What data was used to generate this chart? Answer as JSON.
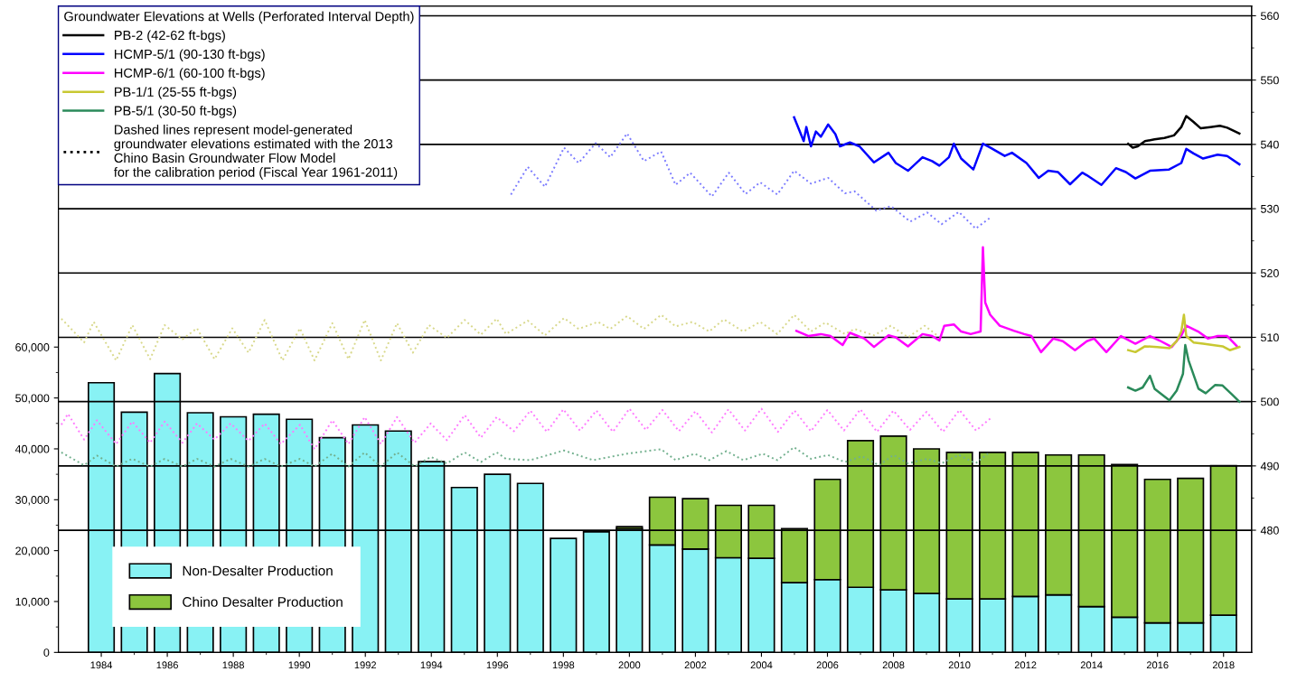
{
  "chart_data": {
    "type": "bar",
    "stacked": true,
    "legend": "top left",
    "grid": "y",
    "legend_title": "Groundwater Elevations at Wells (Perforated Interval Depth)",
    "annotations": [
      "Dashed lines represent model-generated\ngroundwater elevations estimated with the 2013\nChino Basin Groundwater Flow Model\nfor the calibration period (Fiscal Year 1961-2011)"
    ],
    "x": [
      1984,
      1985,
      1986,
      1987,
      1988,
      1989,
      1990,
      1991,
      1992,
      1993,
      1994,
      1995,
      1996,
      1997,
      1998,
      1999,
      2000,
      2001,
      2002,
      2003,
      2004,
      2005,
      2006,
      2007,
      2008,
      2009,
      2010,
      2011,
      2012,
      2013,
      2014,
      2015,
      2016,
      2017,
      2018
    ],
    "xlim": [
      1982.7,
      2018.85
    ],
    "xticks": [
      1984,
      {
        "value": 1985,
        "label": null
      },
      1986,
      {
        "value": 1987,
        "label": null
      },
      1988,
      {
        "value": 1989,
        "label": null
      },
      1990,
      {
        "value": 1991,
        "label": null
      },
      1992,
      {
        "value": 1993,
        "label": null
      },
      1994,
      {
        "value": 1995,
        "label": null
      },
      1996,
      {
        "value": 1997,
        "label": null
      },
      1998,
      {
        "value": 1999,
        "label": null
      },
      2000,
      {
        "value": 2001,
        "label": null
      },
      2002,
      {
        "value": 2003,
        "label": null
      },
      2004,
      {
        "value": 2005,
        "label": null
      },
      2006,
      {
        "value": 2007,
        "label": null
      },
      2008,
      {
        "value": 2009,
        "label": null
      },
      2010,
      {
        "value": 2011,
        "label": null
      },
      2012,
      {
        "value": 2013,
        "label": null
      },
      2014,
      {
        "value": 2015,
        "label": null
      },
      2016,
      {
        "value": 2017,
        "label": null
      },
      2018
    ],
    "ylim": [
      0,
      127000
    ],
    "yticks": [
      0,
      {
        "value": 5000,
        "label": null
      },
      {
        "value": 10000,
        "label": "10,000"
      },
      {
        "value": 15000,
        "label": null
      },
      {
        "value": 20000,
        "label": "20,000"
      },
      {
        "value": 25000,
        "label": null
      },
      {
        "value": 30000,
        "label": "30,000"
      },
      {
        "value": 35000,
        "label": null
      },
      {
        "value": 40000,
        "label": "40,000"
      },
      {
        "value": 45000,
        "label": null
      },
      {
        "value": 50000,
        "label": "50,000"
      },
      {
        "value": 55000,
        "label": null
      },
      {
        "value": 60000,
        "label": "60,000"
      }
    ],
    "y2lim": [
      461,
      561.5
    ],
    "y2ticks": [
      {
        "value": 485,
        "label": null
      },
      480,
      490,
      500,
      510,
      520,
      530,
      540,
      550,
      560,
      {
        "value": 495,
        "label": null
      },
      {
        "value": 505,
        "label": null
      },
      {
        "value": 515,
        "label": null
      },
      {
        "value": 525,
        "label": null
      },
      {
        "value": 535,
        "label": null
      },
      {
        "value": 545,
        "label": null
      },
      {
        "value": 555,
        "label": null
      }
    ],
    "series": [
      {
        "name": "Non-Desalter Production",
        "color": "#88f2f4",
        "values": [
          53000,
          47200,
          54800,
          47100,
          46300,
          46800,
          45800,
          42200,
          44700,
          43500,
          37500,
          32400,
          35000,
          33200,
          22400,
          23700,
          24300,
          21100,
          20300,
          18600,
          18500,
          13700,
          14300,
          12800,
          12300,
          11600,
          10500,
          10500,
          11000,
          11300,
          9000,
          6900,
          5800,
          5800,
          7300
        ]
      },
      {
        "name": "Chino Desalter Production",
        "color": "#8cc63e",
        "values": [
          null,
          null,
          null,
          null,
          null,
          null,
          null,
          null,
          null,
          null,
          null,
          null,
          null,
          null,
          null,
          null,
          400,
          9400,
          9900,
          10300,
          10400,
          10600,
          19700,
          28800,
          30200,
          28400,
          28800,
          28800,
          28300,
          27500,
          29800,
          30000,
          28200,
          28400,
          29400
        ]
      },
      {
        "name": "PB-2 (42-62 ft-bgs)",
        "type": "line",
        "axis": "y2",
        "color": "#000000",
        "line_style": "solid",
        "x": [
          2015.11,
          2015.25,
          2015.4,
          2015.62,
          2015.91,
          2016.21,
          2016.5,
          2016.72,
          2016.87,
          2017.09,
          2017.31,
          2017.6,
          2017.89,
          2018.11,
          2018.48
        ],
        "values": [
          540.1,
          539.5,
          539.7,
          540.5,
          540.8,
          541.0,
          541.4,
          542.7,
          544.4,
          543.5,
          542.5,
          542.7,
          542.9,
          542.6,
          541.7
        ]
      },
      {
        "name": "HCMP-5/1 (90-130 ft-bgs)",
        "type": "line",
        "axis": "y2",
        "color": "#0000ff",
        "line_style": "solid",
        "x": [
          2004.99,
          2005.14,
          2005.28,
          2005.36,
          2005.5,
          2005.65,
          2005.8,
          2006.02,
          2006.24,
          2006.38,
          2006.68,
          2006.97,
          2007.41,
          2007.85,
          2008.07,
          2008.44,
          2008.88,
          2009.17,
          2009.39,
          2009.68,
          2009.83,
          2010.05,
          2010.42,
          2010.71,
          2010.93,
          2011.37,
          2011.59,
          2012.03,
          2012.4,
          2012.69,
          2012.98,
          2013.35,
          2013.72,
          2013.86,
          2014.3,
          2014.74,
          2015.04,
          2015.33,
          2015.77,
          2016.35,
          2016.72,
          2016.87,
          2017.09,
          2017.38,
          2017.82,
          2018.11,
          2018.48
        ],
        "values": [
          544.2,
          542.3,
          540.5,
          542.7,
          539.7,
          542.0,
          541.2,
          543.1,
          541.6,
          539.7,
          540.3,
          539.7,
          537.2,
          538.7,
          537.1,
          535.9,
          538.0,
          537.4,
          536.7,
          538.0,
          540.1,
          537.8,
          536.1,
          540.1,
          539.5,
          538.2,
          538.7,
          537.1,
          534.8,
          535.9,
          535.7,
          533.8,
          535.6,
          535.2,
          533.7,
          536.3,
          535.7,
          534.7,
          535.9,
          536.1,
          537.1,
          539.3,
          538.6,
          537.8,
          538.4,
          538.2,
          536.9
        ]
      },
      {
        "name": "HCMP-6/1 (60-100 ft-bgs)",
        "type": "line",
        "axis": "y2",
        "color": "#ff00ff",
        "line_style": "solid",
        "x": [
          2005.06,
          2005.43,
          2005.8,
          2006.09,
          2006.46,
          2006.68,
          2007.12,
          2007.41,
          2007.85,
          2008.07,
          2008.44,
          2008.88,
          2009.17,
          2009.39,
          2009.54,
          2009.83,
          2010.05,
          2010.34,
          2010.64,
          2010.71,
          2010.78,
          2010.93,
          2011.22,
          2011.66,
          2011.96,
          2012.18,
          2012.47,
          2012.84,
          2013.13,
          2013.5,
          2013.86,
          2014.08,
          2014.45,
          2014.89,
          2015.33,
          2015.77,
          2016.06,
          2016.43,
          2016.72,
          2016.87,
          2017.23,
          2017.53,
          2017.82,
          2018.11,
          2018.41
        ],
        "values": [
          511.0,
          510.2,
          510.5,
          510.2,
          508.8,
          510.7,
          509.8,
          508.5,
          510.3,
          510.0,
          508.6,
          510.5,
          510.2,
          509.5,
          511.8,
          512.0,
          510.9,
          510.5,
          510.9,
          524.0,
          515.4,
          513.5,
          511.8,
          511.0,
          510.5,
          510.2,
          507.7,
          509.8,
          509.4,
          508.0,
          509.4,
          509.8,
          507.7,
          510.2,
          509.0,
          510.2,
          509.5,
          508.5,
          510.3,
          511.8,
          510.9,
          509.8,
          510.2,
          510.2,
          508.6
        ]
      },
      {
        "name": "PB-1/1 (25-55 ft-bgs)",
        "type": "line",
        "axis": "y2",
        "color": "#c8c832",
        "line_style": "solid",
        "x": [
          2015.11,
          2015.33,
          2015.62,
          2015.99,
          2016.36,
          2016.58,
          2016.72,
          2016.8,
          2016.87,
          2017.09,
          2017.38,
          2017.67,
          2017.97,
          2018.19,
          2018.48
        ],
        "values": [
          508.0,
          507.7,
          508.6,
          508.5,
          508.3,
          509.4,
          510.9,
          513.5,
          510.2,
          509.2,
          509.0,
          508.8,
          508.6,
          508.0,
          508.5
        ]
      },
      {
        "name": "PB-5/1 (30-50 ft-bgs)",
        "type": "line",
        "axis": "y2",
        "color": "#2a8a5a",
        "line_style": "solid",
        "x": [
          2015.11,
          2015.33,
          2015.55,
          2015.77,
          2015.91,
          2016.36,
          2016.58,
          2016.77,
          2016.84,
          2016.94,
          2017.24,
          2017.46,
          2017.75,
          2017.97,
          2018.26,
          2018.48
        ],
        "values": [
          502.2,
          501.7,
          502.2,
          504.0,
          502.0,
          500.2,
          501.7,
          504.3,
          508.8,
          506.4,
          502.0,
          501.3,
          502.6,
          502.5,
          501.1,
          500.0
        ]
      },
      {
        "type": "line",
        "axis": "y2",
        "color": "#7a7aff",
        "line_style": "dotted",
        "x": [
          1996.41,
          1996.92,
          1997.44,
          1998.02,
          1998.46,
          1998.98,
          1999.42,
          1999.93,
          2000.44,
          2000.96,
          2001.4,
          2001.84,
          2002.5,
          2003.01,
          2003.52,
          2003.96,
          2004.48,
          2004.99,
          2005.5,
          2006.02,
          2006.53,
          2006.82,
          2007.48,
          2007.92,
          2008.51,
          2009.02,
          2009.46,
          2009.98,
          2010.49,
          2010.93
        ],
        "values": [
          532.2,
          536.5,
          533.4,
          539.5,
          537.1,
          540.2,
          538.0,
          541.7,
          537.4,
          538.9,
          533.7,
          535.6,
          531.9,
          535.6,
          532.3,
          534.1,
          532.2,
          535.9,
          533.9,
          534.8,
          532.4,
          532.7,
          529.7,
          530.4,
          528.0,
          529.4,
          527.6,
          529.5,
          526.9,
          528.6
        ]
      },
      {
        "type": "line",
        "axis": "y2",
        "color": "#d8d88a",
        "line_style": "dotted",
        "x": [
          1982.79,
          1983.48,
          1983.77,
          1984.45,
          1984.94,
          1985.48,
          1985.92,
          1986.46,
          1986.9,
          1987.43,
          1987.97,
          1988.46,
          1988.95,
          1989.49,
          1990.02,
          1990.46,
          1991.0,
          1991.49,
          1991.98,
          1992.47,
          1992.96,
          1993.44,
          1993.93,
          1994.47,
          1995.01,
          1995.5,
          1995.98,
          1996.26,
          1996.92,
          1997.44,
          1998.02,
          1998.46,
          1999.05,
          1999.42,
          1999.93,
          2000.44,
          2000.96,
          2001.4,
          2001.91,
          2002.42,
          2002.86,
          2003.45,
          2003.96,
          2004.48,
          2004.99,
          2005.5,
          2005.94,
          2006.53,
          2006.82,
          2007.41,
          2007.92,
          2008.44,
          2008.95,
          2009.32
        ],
        "values": [
          512.9,
          509.2,
          512.4,
          506.4,
          511.9,
          506.6,
          511.9,
          509.7,
          511.4,
          506.6,
          511.4,
          507.6,
          512.7,
          506.4,
          511.4,
          506.4,
          512.2,
          506.6,
          512.7,
          506.4,
          512.2,
          507.6,
          511.9,
          509.9,
          512.7,
          510.4,
          512.9,
          510.5,
          512.6,
          510.3,
          513.0,
          511.3,
          512.4,
          511.3,
          513.3,
          511.3,
          513.5,
          511.7,
          512.4,
          510.9,
          512.8,
          510.9,
          512.4,
          510.5,
          513.5,
          510.9,
          512.3,
          510.5,
          511.3,
          510.3,
          511.8,
          510.0,
          511.8,
          510.3
        ]
      },
      {
        "type": "line",
        "axis": "y2",
        "color": "#ff7aff",
        "line_style": "dotted",
        "x": [
          1982.79,
          1982.99,
          1983.48,
          1983.87,
          1984.45,
          1984.94,
          1985.48,
          1985.92,
          1986.46,
          1986.9,
          1987.43,
          1987.92,
          1988.46,
          1988.95,
          1989.44,
          1990.02,
          1990.46,
          1991.0,
          1991.49,
          1991.98,
          1992.47,
          1992.96,
          1993.49,
          1993.98,
          1994.47,
          1995.01,
          1995.5,
          1995.98,
          1996.5,
          1997.0,
          1997.5,
          1998.0,
          1998.5,
          1999.0,
          1999.5,
          2000.0,
          2000.5,
          2001.0,
          2001.5,
          2002.0,
          2002.5,
          2003.0,
          2003.5,
          2004.0,
          2004.5,
          2005.0,
          2005.5,
          2006.0,
          2006.5,
          2007.0,
          2007.5,
          2008.0,
          2008.5,
          2009.0,
          2009.5,
          2010.0,
          2010.5,
          2010.96
        ],
        "values": [
          496.4,
          498.1,
          494.1,
          497.1,
          493.4,
          496.9,
          493.6,
          496.9,
          493.6,
          496.6,
          494.1,
          496.6,
          493.9,
          496.6,
          493.4,
          496.4,
          492.6,
          497.1,
          493.4,
          497.6,
          493.4,
          497.6,
          493.6,
          496.6,
          494.0,
          497.9,
          494.4,
          497.6,
          495.4,
          498.6,
          495.3,
          498.8,
          495.5,
          498.6,
          495.3,
          498.9,
          495.6,
          498.7,
          495.4,
          498.5,
          495.2,
          498.8,
          495.5,
          498.9,
          495.3,
          498.6,
          495.4,
          498.7,
          495.5,
          498.8,
          495.3,
          498.6,
          495.6,
          498.4,
          495.3,
          498.7,
          495.5,
          497.5
        ]
      },
      {
        "type": "line",
        "axis": "y2",
        "color": "#72b08e",
        "line_style": "dotted",
        "x": [
          1982.79,
          1983.48,
          1983.87,
          1984.45,
          1984.94,
          1985.48,
          1985.92,
          1986.46,
          1986.9,
          1987.43,
          1987.92,
          1988.46,
          1988.95,
          1989.44,
          1990.02,
          1990.46,
          1991.0,
          1991.49,
          1991.98,
          1992.47,
          1992.96,
          1993.49,
          1993.98,
          1994.47,
          1995.01,
          1995.5,
          1995.98,
          1996.26,
          1997.0,
          1998.02,
          1998.9,
          1999.93,
          2000.96,
          2001.4,
          2001.98,
          2002.42,
          2002.94,
          2003.45,
          2004.04,
          2004.48,
          2004.99,
          2005.5,
          2006.02,
          2006.53,
          2007.04,
          2007.56,
          2008.0,
          2008.44,
          2009.02,
          2009.46,
          2009.98,
          2010.49,
          2010.86
        ],
        "values": [
          492.1,
          490.1,
          491.6,
          489.9,
          491.1,
          489.9,
          491.1,
          489.9,
          491.1,
          489.9,
          491.1,
          489.9,
          491.1,
          489.9,
          491.1,
          489.9,
          491.9,
          489.9,
          492.1,
          489.9,
          492.1,
          489.9,
          491.4,
          490.4,
          492.1,
          490.6,
          492.1,
          491.1,
          490.9,
          492.4,
          490.9,
          491.9,
          492.6,
          490.9,
          491.9,
          490.9,
          492.3,
          490.9,
          491.9,
          490.9,
          492.9,
          491.1,
          491.7,
          490.6,
          491.5,
          490.1,
          491.7,
          490.4,
          491.1,
          490.4,
          491.7,
          490.4,
          491.9
        ]
      }
    ]
  }
}
